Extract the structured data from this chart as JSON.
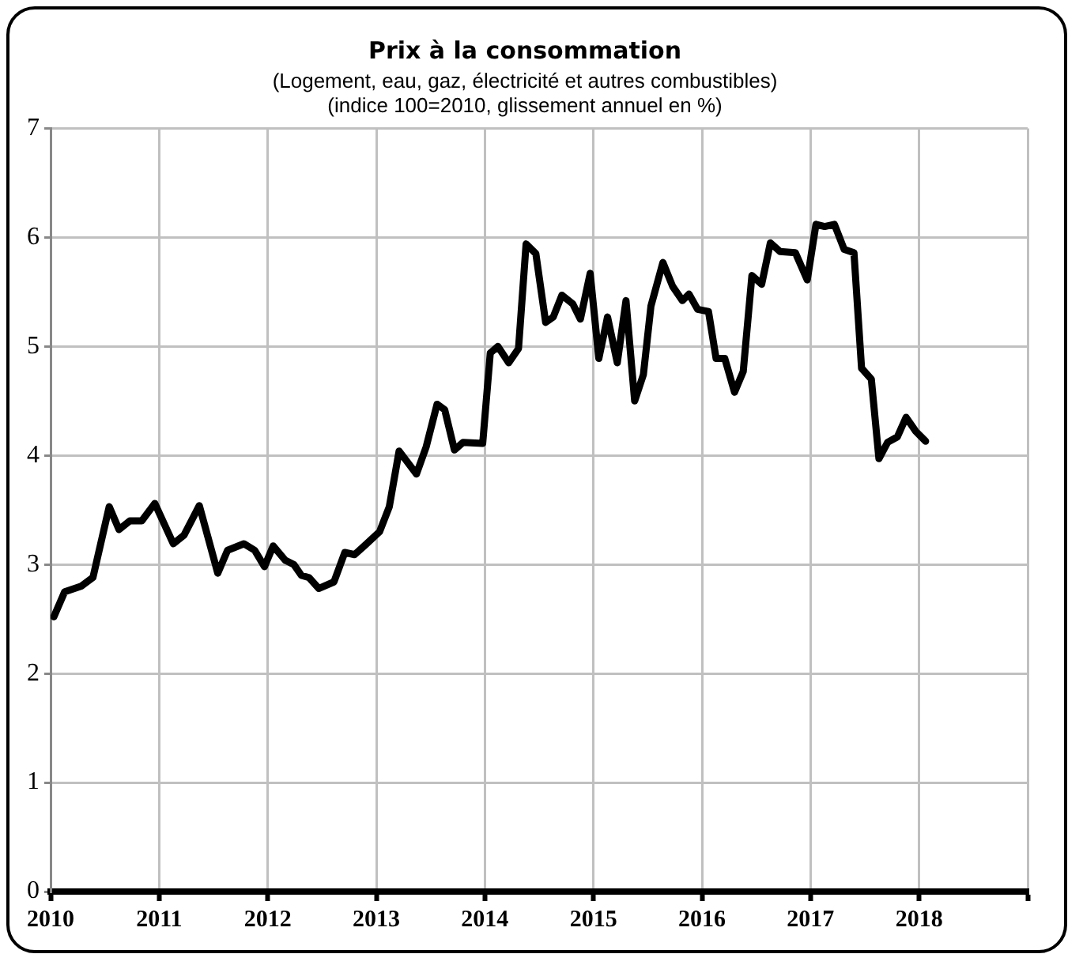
{
  "chart_data": {
    "type": "line",
    "title": "Prix à la consommation",
    "subtitle": "(Logement, eau, gaz, électricité et autres combustibles)\n(indice 100=2010, glissement annuel en %)",
    "series": [
      {
        "color": "#000000",
        "x": [
          2010.03,
          2010.13,
          2010.28,
          2010.39,
          2010.54,
          2010.63,
          2010.73,
          2010.84,
          2010.96,
          2011.13,
          2011.23,
          2011.37,
          2011.54,
          2011.63,
          2011.78,
          2011.88,
          2011.97,
          2012.05,
          2012.16,
          2012.24,
          2012.31,
          2012.38,
          2012.47,
          2012.61,
          2012.71,
          2012.8,
          2012.9,
          2013.03,
          2013.12,
          2013.21,
          2013.37,
          2013.46,
          2013.56,
          2013.63,
          2013.72,
          2013.8,
          2013.98,
          2014.05,
          2014.12,
          2014.22,
          2014.31,
          2014.38,
          2014.47,
          2014.56,
          2014.63,
          2014.71,
          2014.81,
          2014.88,
          2014.97,
          2015.05,
          2015.13,
          2015.22,
          2015.3,
          2015.38,
          2015.46,
          2015.53,
          2015.64,
          2015.73,
          2015.82,
          2015.88,
          2015.96,
          2016.06,
          2016.13,
          2016.21,
          2016.3,
          2016.38,
          2016.46,
          2016.55,
          2016.63,
          2016.72,
          2016.86,
          2016.97,
          2017.05,
          2017.13,
          2017.22,
          2017.31,
          2017.4,
          2017.47,
          2017.56,
          2017.63,
          2017.71,
          2017.8,
          2017.88,
          2017.97,
          2018.06
        ],
        "values": [
          2.52,
          2.75,
          2.8,
          2.88,
          3.53,
          3.32,
          3.4,
          3.4,
          3.56,
          3.19,
          3.27,
          3.54,
          2.92,
          3.13,
          3.19,
          3.13,
          2.98,
          3.17,
          3.04,
          3.0,
          2.9,
          2.88,
          2.78,
          2.84,
          3.11,
          3.09,
          3.18,
          3.3,
          3.53,
          4.04,
          3.83,
          4.08,
          4.47,
          4.42,
          4.05,
          4.12,
          4.11,
          4.94,
          5.0,
          4.85,
          4.98,
          5.94,
          5.85,
          5.22,
          5.27,
          5.47,
          5.39,
          5.25,
          5.67,
          4.89,
          5.27,
          4.85,
          5.42,
          4.5,
          4.74,
          5.37,
          5.77,
          5.55,
          5.42,
          5.48,
          5.34,
          5.32,
          4.89,
          4.89,
          4.58,
          4.77,
          5.65,
          5.57,
          5.95,
          5.87,
          5.86,
          5.61,
          6.12,
          6.1,
          6.12,
          5.89,
          5.86,
          4.8,
          4.7,
          3.97,
          4.12,
          4.17,
          4.35,
          4.22,
          4.13
        ]
      }
    ],
    "xlim": [
      2010,
      2019
    ],
    "xticks": [
      2010,
      2011,
      2012,
      2013,
      2014,
      2015,
      2016,
      2017,
      2018,
      {
        "value": 2019,
        "label": null
      }
    ],
    "ylim": [
      0,
      7
    ],
    "yticks": [
      0,
      1,
      2,
      3,
      4,
      5,
      6,
      7
    ],
    "grid": true,
    "legend": false,
    "marker": "none",
    "line_style": "solid"
  }
}
